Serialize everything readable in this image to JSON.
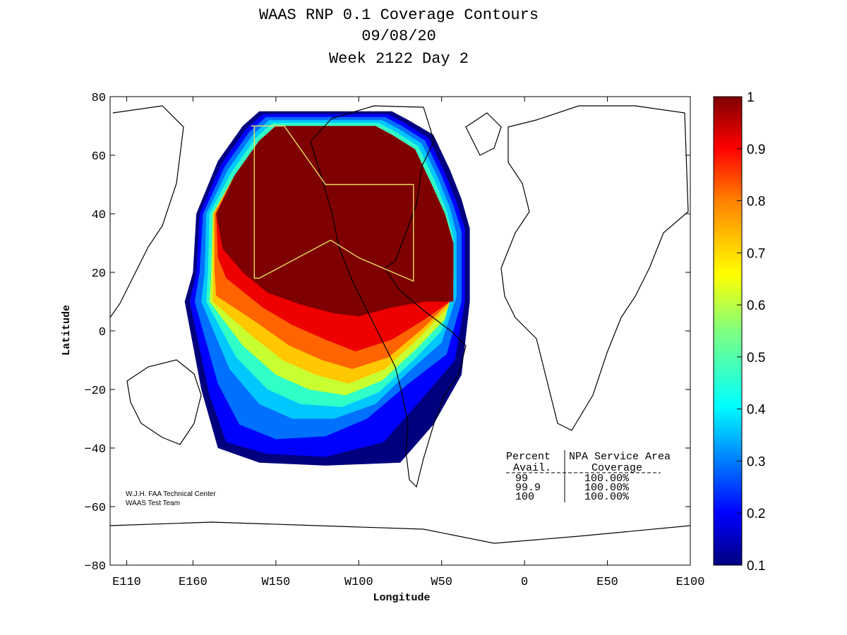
{
  "chart_data": {
    "type": "heatmap",
    "title_lines": [
      "WAAS RNP 0.1 Coverage Contours",
      "09/08/20",
      "Week 2122 Day 2"
    ],
    "xlabel": "Longitude",
    "ylabel": "Latitude",
    "xlim": [
      -250,
      100
    ],
    "ylim": [
      -80,
      80
    ],
    "x_ticks": [
      {
        "value": -240,
        "label": "E110"
      },
      {
        "value": -200,
        "label": "E160"
      },
      {
        "value": -150,
        "label": "W150"
      },
      {
        "value": -100,
        "label": "W100"
      },
      {
        "value": -50,
        "label": "W50"
      },
      {
        "value": 0,
        "label": "0"
      },
      {
        "value": 50,
        "label": "E50"
      },
      {
        "value": 100,
        "label": "E100"
      }
    ],
    "y_ticks": [
      80,
      60,
      40,
      20,
      0,
      -20,
      -40,
      -60,
      -80
    ],
    "colorbar": {
      "min": 0.1,
      "max": 1,
      "ticks": [
        1,
        0.9,
        0.8,
        0.7,
        0.6,
        0.5,
        0.4,
        0.3,
        0.2,
        0.1
      ]
    },
    "coverage_regions": [
      {
        "level": 0.1,
        "color": "#00007f",
        "points": [
          [
            -195,
            -20
          ],
          [
            -185,
            -40
          ],
          [
            -160,
            -45
          ],
          [
            -120,
            -46
          ],
          [
            -75,
            -45
          ],
          [
            -55,
            -32
          ],
          [
            -38,
            -15
          ],
          [
            -33,
            10
          ],
          [
            -33,
            35
          ],
          [
            -38,
            45
          ],
          [
            -45,
            55
          ],
          [
            -55,
            67
          ],
          [
            -70,
            72
          ],
          [
            -80,
            75
          ],
          [
            -160,
            75
          ],
          [
            -170,
            70
          ],
          [
            -185,
            58
          ],
          [
            -198,
            40
          ],
          [
            -200,
            20
          ],
          [
            -205,
            10
          ]
        ]
      },
      {
        "level": 0.2,
        "color": "#0000ff",
        "points": [
          [
            -190,
            -22
          ],
          [
            -180,
            -38
          ],
          [
            -155,
            -42
          ],
          [
            -120,
            -43
          ],
          [
            -85,
            -38
          ],
          [
            -60,
            -22
          ],
          [
            -42,
            -10
          ],
          [
            -36,
            10
          ],
          [
            -36,
            35
          ],
          [
            -41,
            44
          ],
          [
            -48,
            54
          ],
          [
            -58,
            66
          ],
          [
            -72,
            71
          ],
          [
            -82,
            74
          ],
          [
            -158,
            74
          ],
          [
            -168,
            69
          ],
          [
            -183,
            57
          ],
          [
            -196,
            40
          ],
          [
            -198,
            20
          ],
          [
            -202,
            10
          ]
        ]
      },
      {
        "level": 0.3,
        "color": "#0070ff",
        "points": [
          [
            -185,
            -18
          ],
          [
            -172,
            -32
          ],
          [
            -150,
            -37
          ],
          [
            -120,
            -36
          ],
          [
            -95,
            -30
          ],
          [
            -70,
            -18
          ],
          [
            -47,
            -8
          ],
          [
            -38,
            10
          ],
          [
            -38,
            34
          ],
          [
            -43,
            43
          ],
          [
            -50,
            53
          ],
          [
            -60,
            65
          ],
          [
            -74,
            70
          ],
          [
            -84,
            73
          ],
          [
            -156,
            73
          ],
          [
            -166,
            68
          ],
          [
            -181,
            56
          ],
          [
            -194,
            40
          ],
          [
            -196,
            20
          ],
          [
            -199,
            10
          ]
        ]
      },
      {
        "level": 0.4,
        "color": "#00c8ff",
        "points": [
          [
            -178,
            -13
          ],
          [
            -160,
            -25
          ],
          [
            -140,
            -30
          ],
          [
            -115,
            -30
          ],
          [
            -90,
            -25
          ],
          [
            -70,
            -14
          ],
          [
            -50,
            -4
          ],
          [
            -41,
            12
          ],
          [
            -41,
            33
          ],
          [
            -45,
            42
          ],
          [
            -52,
            52
          ],
          [
            -62,
            64
          ],
          [
            -76,
            69
          ],
          [
            -86,
            72
          ],
          [
            -154,
            72
          ],
          [
            -164,
            67
          ],
          [
            -179,
            55
          ],
          [
            -192,
            40
          ],
          [
            -193,
            20
          ],
          [
            -195,
            10
          ]
        ]
      },
      {
        "level": 0.5,
        "color": "#30ffc8",
        "points": [
          [
            -174,
            -9
          ],
          [
            -155,
            -20
          ],
          [
            -135,
            -25
          ],
          [
            -110,
            -26
          ],
          [
            -88,
            -21
          ],
          [
            -67,
            -10
          ],
          [
            -50,
            0
          ],
          [
            -43,
            14
          ],
          [
            -43,
            32
          ],
          [
            -47,
            41
          ],
          [
            -54,
            51
          ],
          [
            -64,
            63
          ],
          [
            -78,
            68
          ],
          [
            -88,
            71
          ],
          [
            -152,
            71
          ],
          [
            -162,
            66
          ],
          [
            -177,
            54
          ],
          [
            -190,
            40
          ],
          [
            -191,
            20
          ],
          [
            -192,
            10
          ]
        ]
      },
      {
        "level": 0.6,
        "color": "#c8ff30",
        "points": [
          [
            -170,
            -5
          ],
          [
            -150,
            -15
          ],
          [
            -130,
            -20
          ],
          [
            -108,
            -22
          ],
          [
            -86,
            -17
          ],
          [
            -65,
            -6
          ],
          [
            -48,
            4
          ],
          [
            -43,
            16
          ],
          [
            -43,
            30
          ],
          [
            -48,
            40
          ],
          [
            -56,
            50
          ],
          [
            -66,
            62
          ],
          [
            -80,
            67
          ],
          [
            -90,
            70
          ],
          [
            -150,
            70
          ],
          [
            -160,
            65
          ],
          [
            -175,
            53
          ],
          [
            -188,
            40
          ],
          [
            -189,
            20
          ],
          [
            -190,
            10
          ]
        ]
      },
      {
        "level": 0.7,
        "color": "#ffc800",
        "points": [
          [
            -166,
            -1
          ],
          [
            -146,
            -10
          ],
          [
            -126,
            -15
          ],
          [
            -106,
            -18
          ],
          [
            -84,
            -13
          ],
          [
            -63,
            -2
          ],
          [
            -46,
            8
          ],
          [
            -43,
            18
          ],
          [
            -43,
            30
          ],
          [
            -48,
            40
          ],
          [
            -56,
            50
          ],
          [
            -66,
            62
          ],
          [
            -80,
            67
          ],
          [
            -90,
            70
          ],
          [
            -150,
            70
          ],
          [
            -160,
            65
          ],
          [
            -175,
            53
          ],
          [
            -188,
            40
          ],
          [
            -188,
            20
          ],
          [
            -188,
            10
          ]
        ]
      },
      {
        "level": 0.8,
        "color": "#ff6400",
        "points": [
          [
            -162,
            3
          ],
          [
            -142,
            -5
          ],
          [
            -122,
            -10
          ],
          [
            -104,
            -13
          ],
          [
            -82,
            -9
          ],
          [
            -61,
            1
          ],
          [
            -45,
            10
          ],
          [
            -43,
            18
          ],
          [
            -43,
            30
          ],
          [
            -48,
            40
          ],
          [
            -56,
            50
          ],
          [
            -66,
            62
          ],
          [
            -80,
            67
          ],
          [
            -90,
            70
          ],
          [
            -150,
            70
          ],
          [
            -160,
            65
          ],
          [
            -175,
            53
          ],
          [
            -187,
            40
          ],
          [
            -187,
            20
          ],
          [
            -186,
            12
          ]
        ]
      },
      {
        "level": 0.9,
        "color": "#ee0000",
        "points": [
          [
            -158,
            8
          ],
          [
            -140,
            2
          ],
          [
            -120,
            -3
          ],
          [
            -102,
            -7
          ],
          [
            -80,
            -3
          ],
          [
            -60,
            4
          ],
          [
            -45,
            10
          ],
          [
            -43,
            18
          ],
          [
            -43,
            30
          ],
          [
            -48,
            40
          ],
          [
            -56,
            50
          ],
          [
            -66,
            62
          ],
          [
            -80,
            67
          ],
          [
            -90,
            70
          ],
          [
            -150,
            70
          ],
          [
            -160,
            65
          ],
          [
            -175,
            53
          ],
          [
            -186,
            40
          ],
          [
            -185,
            25
          ],
          [
            -180,
            18
          ]
        ]
      },
      {
        "level": 1.0,
        "color": "#7f0000",
        "points": [
          [
            -155,
            13
          ],
          [
            -135,
            9
          ],
          [
            -115,
            6
          ],
          [
            -100,
            5
          ],
          [
            -80,
            8
          ],
          [
            -60,
            10
          ],
          [
            -43,
            10
          ],
          [
            -43,
            30
          ],
          [
            -48,
            40
          ],
          [
            -56,
            50
          ],
          [
            -66,
            62
          ],
          [
            -80,
            67
          ],
          [
            -90,
            70
          ],
          [
            -150,
            70
          ],
          [
            -160,
            65
          ],
          [
            -175,
            53
          ],
          [
            -186,
            40
          ],
          [
            -182,
            28
          ],
          [
            -170,
            20
          ]
        ]
      }
    ],
    "service_area": [
      [
        -165,
        70
      ],
      [
        -145,
        70
      ],
      [
        -120,
        50
      ],
      [
        -67,
        50
      ],
      [
        -67,
        17
      ],
      [
        -100,
        25
      ],
      [
        -117,
        31
      ],
      [
        -160,
        18
      ],
      [
        -163,
        18
      ],
      [
        -163,
        70
      ]
    ],
    "credit_lines": [
      "W.J.H. FAA Technical Center",
      "WAAS Test Team"
    ],
    "table": {
      "header_left": [
        "Percent",
        "Avail."
      ],
      "header_right": [
        "NPA Service Area",
        "Coverage"
      ],
      "rows": [
        {
          "avail": "99",
          "coverage": "100.00%"
        },
        {
          "avail": "99.9",
          "coverage": "100.00%"
        },
        {
          "avail": "100",
          "coverage": "100.00%"
        }
      ]
    }
  }
}
